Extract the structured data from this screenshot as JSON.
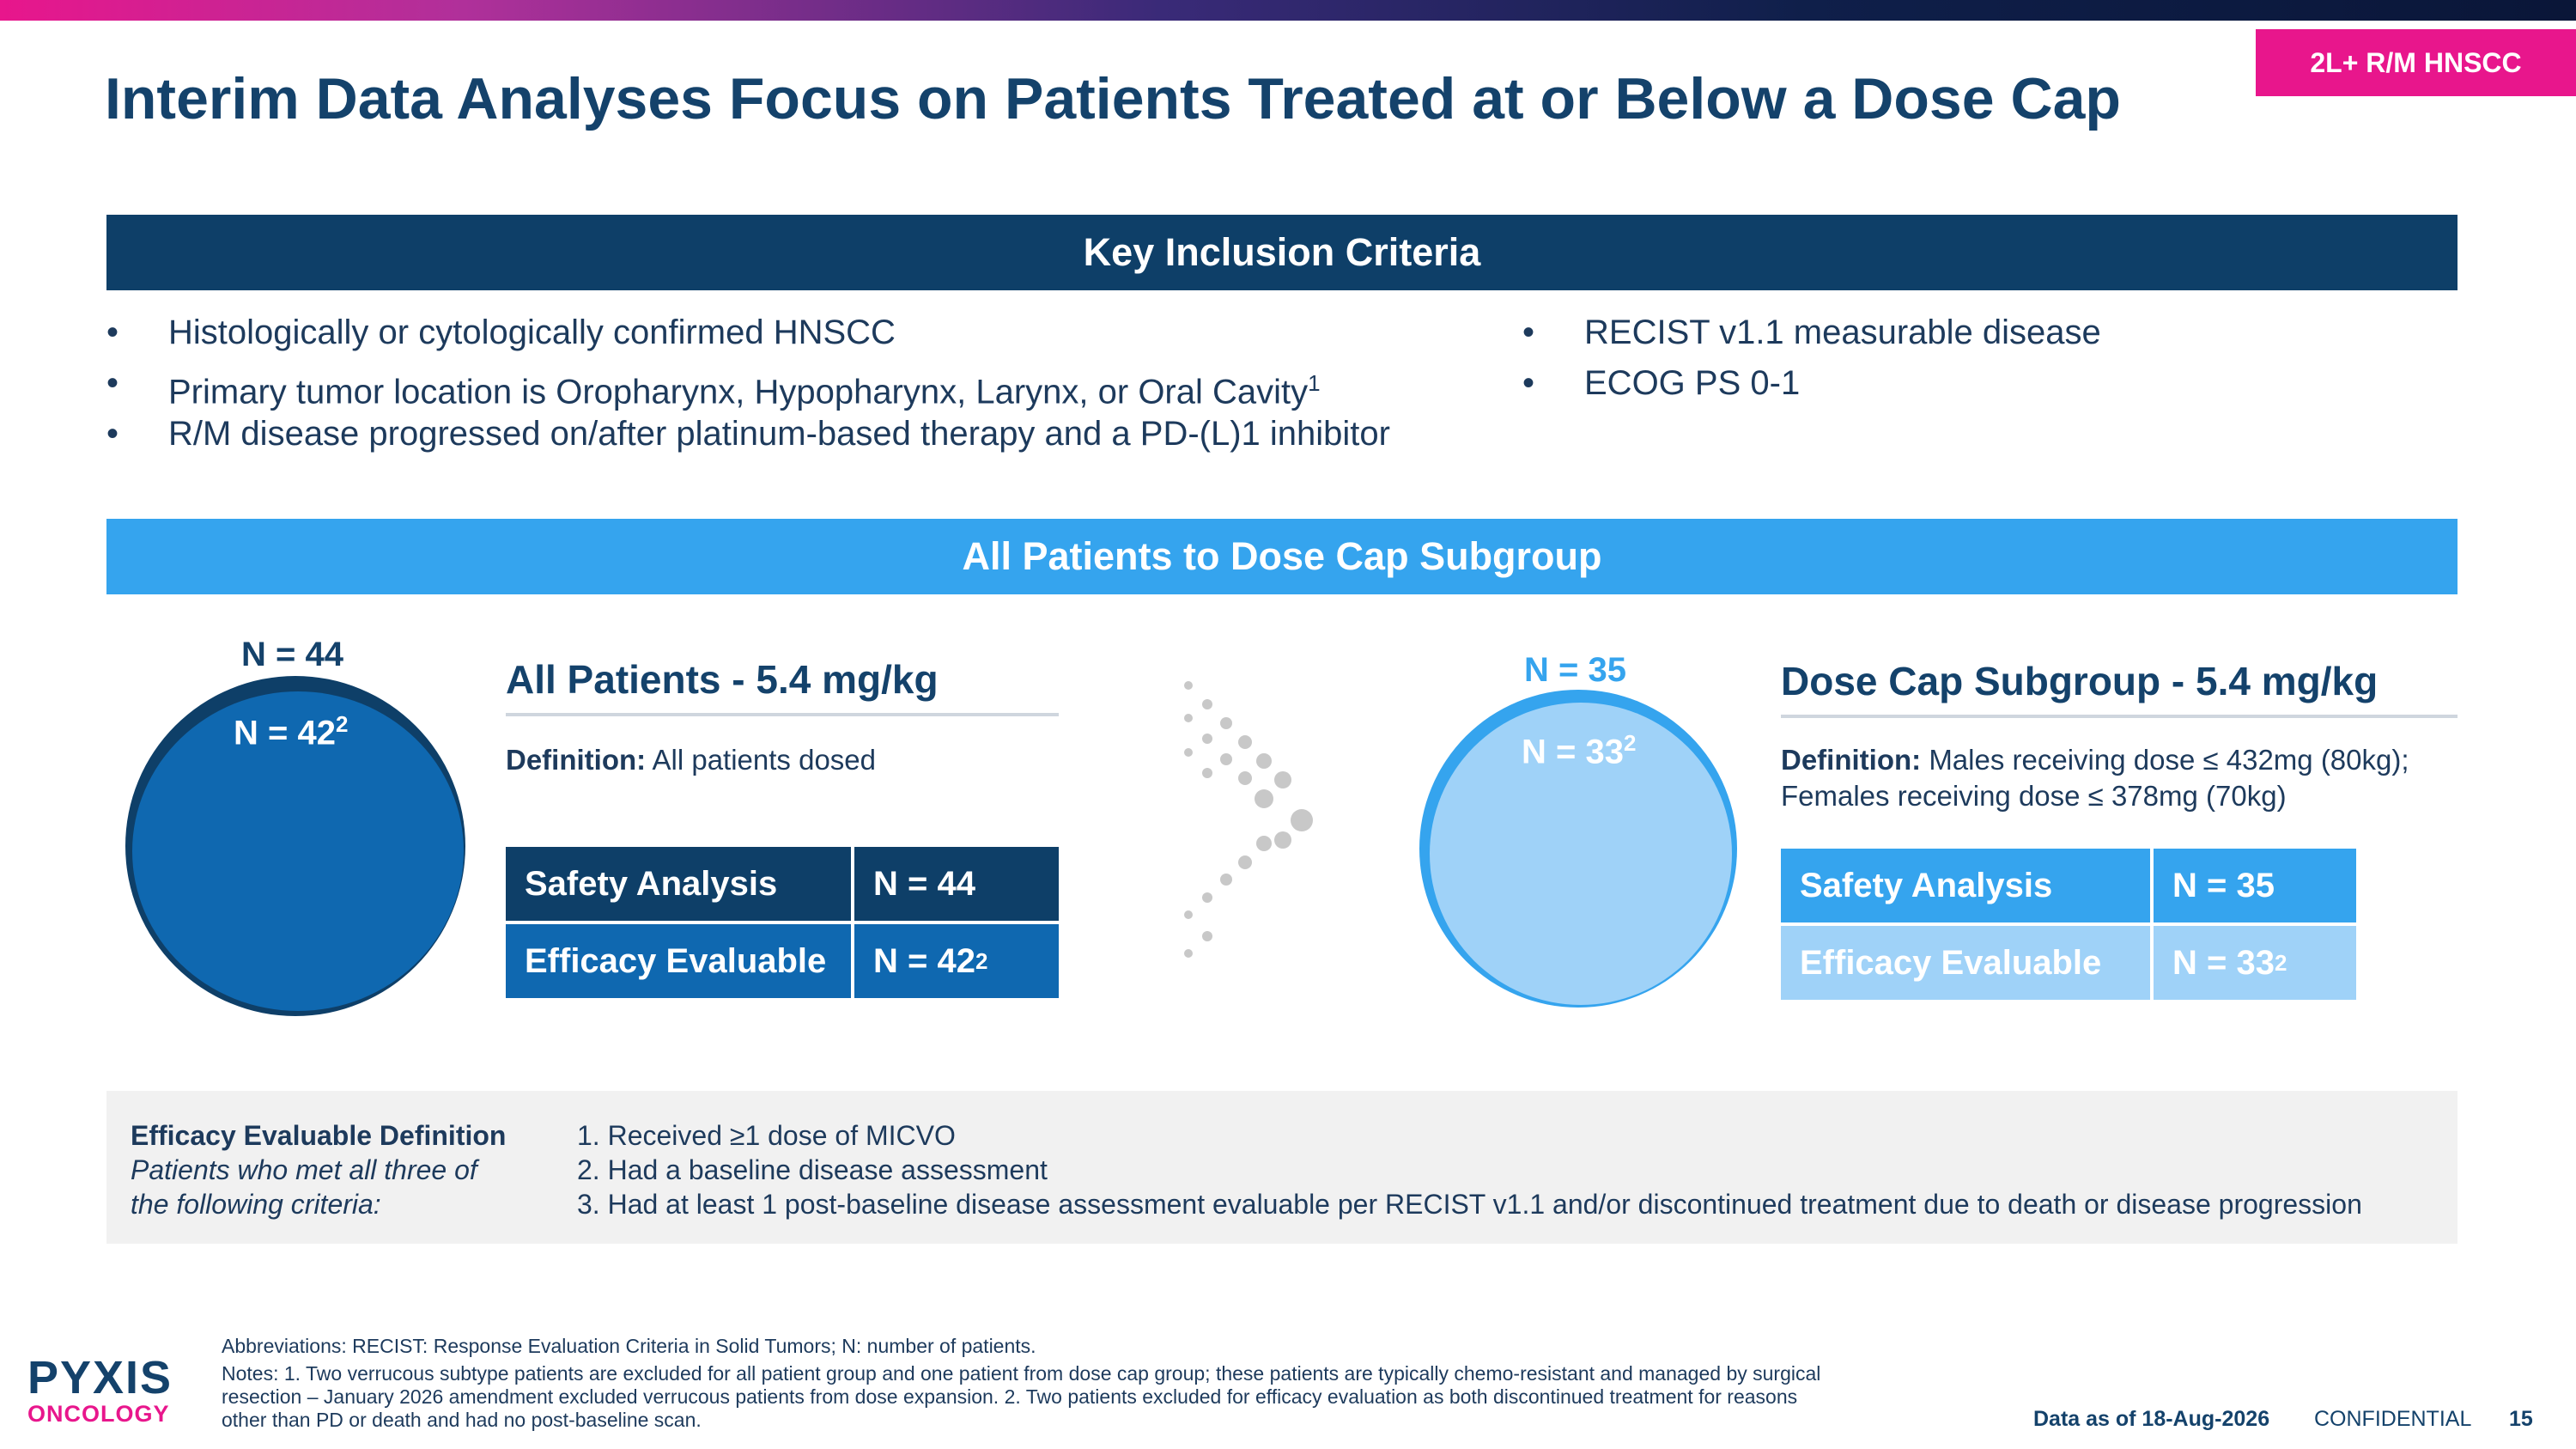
{
  "tag": "2L+ R/M HNSCC",
  "title": "Interim Data Analyses Focus on Patients Treated at or Below a Dose Cap",
  "inclusion": {
    "header": "Key Inclusion Criteria",
    "left": [
      {
        "text": "Histologically or cytologically confirmed HNSCC",
        "sup": ""
      },
      {
        "text": "Primary tumor location is Oropharynx, Hypopharynx, Larynx, or Oral Cavity",
        "sup": "1"
      },
      {
        "text": "R/M disease progressed on/after platinum-based therapy and a PD-(L)1 inhibitor",
        "sup": ""
      }
    ],
    "right": [
      {
        "text": "RECIST v1.1 measurable disease"
      },
      {
        "text": "ECOG PS 0-1"
      }
    ]
  },
  "subgroup_header": "All Patients to Dose Cap Subgroup",
  "all_patients": {
    "n_outer": "N = 44",
    "n_inner": "N = 42",
    "n_inner_sup": "2",
    "title": "All Patients - 5.4 mg/kg",
    "definition_label": "Definition:",
    "definition_text": "All patients dosed",
    "rows": [
      {
        "label": "Safety Analysis",
        "value": "N = 44",
        "sup": ""
      },
      {
        "label": "Efficacy Evaluable",
        "value": "N = 42",
        "sup": "2"
      }
    ]
  },
  "dose_cap": {
    "n_outer": "N = 35",
    "n_inner": "N = 33",
    "n_inner_sup": "2",
    "title": "Dose Cap Subgroup - 5.4 mg/kg",
    "definition_label": "Definition:",
    "definition_line1": "Males receiving dose ≤ 432mg (80kg);",
    "definition_line2": "Females receiving dose ≤ 378mg (70kg)",
    "rows": [
      {
        "label": "Safety Analysis",
        "value": "N = 35",
        "sup": ""
      },
      {
        "label": "Efficacy Evaluable",
        "value": "N = 33",
        "sup": "2"
      }
    ]
  },
  "efficacy_def": {
    "title": "Efficacy Evaluable Definition",
    "subtitle_line1": "Patients who met all three of",
    "subtitle_line2": "the following criteria:",
    "criteria": [
      "1. Received ≥1 dose of MICVO",
      "2. Had a baseline disease assessment",
      "3. Had at least 1 post-baseline disease assessment evaluable per RECIST v1.1 and/or discontinued treatment due to death or disease progression"
    ]
  },
  "footer": {
    "abbreviations": "Abbreviations: RECIST: Response Evaluation Criteria in Solid Tumors; N: number of patients.",
    "notes_line1": "Notes: 1. Two verrucous subtype patients are excluded for all patient group and one patient from dose cap group; these patients are typically chemo-resistant and managed by surgical",
    "notes_line2": "resection – January 2026 amendment excluded verrucous patients from dose expansion. 2. Two patients excluded for efficacy evaluation as both discontinued treatment for reasons",
    "notes_line3": "other than PD or death and had no post-baseline scan.",
    "data_as_of": "Data as of 18-Aug-2026",
    "confidential": "CONFIDENTIAL",
    "page": "15"
  },
  "logo": {
    "line1": "PYXIS",
    "line2": "ONCOLOGY"
  },
  "colors": {
    "navy": "#0e3f68",
    "blue": "#0f68b0",
    "light_blue": "#35a4ee",
    "pale_blue": "#9fd2f8",
    "magenta": "#e8168c"
  }
}
